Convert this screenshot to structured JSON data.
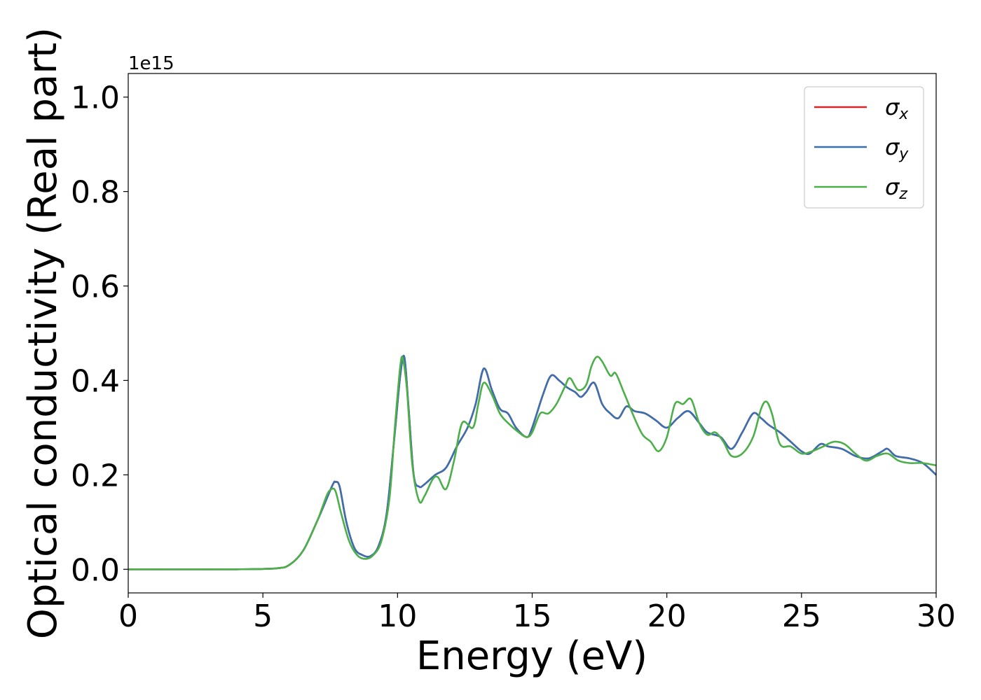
{
  "chart_data": {
    "type": "line",
    "title": "",
    "xlabel": "Energy (eV)",
    "ylabel": "Optical conductivity (Real part)",
    "y_offset_text": "1e15",
    "xlim": [
      0,
      30
    ],
    "ylim": [
      -0.05,
      1.05
    ],
    "xticks": [
      0,
      5,
      10,
      15,
      20,
      25,
      30
    ],
    "xtick_labels": [
      "0",
      "5",
      "10",
      "15",
      "20",
      "25",
      "30"
    ],
    "yticks": [
      0.0,
      0.2,
      0.4,
      0.6,
      0.8,
      1.0
    ],
    "ytick_labels": [
      "0.0",
      "0.2",
      "0.4",
      "0.6",
      "0.8",
      "1.0"
    ],
    "grid": false,
    "legend_position": "top-right",
    "series": [
      {
        "name": "σx",
        "name_symbol": "σ",
        "name_sub": "x",
        "color": "#d62728",
        "x": [
          0,
          4,
          5.5,
          6,
          6.5,
          7,
          7.3,
          7.6,
          7.7,
          7.85,
          8.1,
          8.4,
          8.7,
          9.0,
          9.3,
          9.6,
          9.9,
          10.1,
          10.25,
          10.4,
          10.6,
          10.8,
          11.0,
          11.4,
          11.8,
          12.2,
          12.6,
          12.9,
          13.2,
          13.5,
          13.8,
          14.1,
          14.4,
          14.8,
          15.0,
          15.4,
          15.7,
          16.0,
          16.3,
          16.6,
          16.8,
          17.0,
          17.3,
          17.6,
          17.9,
          18.2,
          18.5,
          18.8,
          19.2,
          19.6,
          20.0,
          20.4,
          20.8,
          21.2,
          21.5,
          22.0,
          22.4,
          22.8,
          23.2,
          23.5,
          23.8,
          24.2,
          24.6,
          25.0,
          25.3,
          25.7,
          26.0,
          26.5,
          27.0,
          27.5,
          28.0,
          28.2,
          28.5,
          29.0,
          29.5,
          30.0
        ],
        "values": [
          0.0,
          0.0,
          0.002,
          0.01,
          0.04,
          0.1,
          0.14,
          0.18,
          0.185,
          0.175,
          0.1,
          0.045,
          0.03,
          0.028,
          0.05,
          0.12,
          0.29,
          0.41,
          0.45,
          0.35,
          0.2,
          0.175,
          0.18,
          0.2,
          0.215,
          0.26,
          0.3,
          0.35,
          0.425,
          0.38,
          0.34,
          0.33,
          0.3,
          0.28,
          0.3,
          0.37,
          0.41,
          0.4,
          0.385,
          0.375,
          0.365,
          0.375,
          0.395,
          0.35,
          0.33,
          0.32,
          0.345,
          0.335,
          0.33,
          0.315,
          0.3,
          0.32,
          0.335,
          0.31,
          0.29,
          0.28,
          0.255,
          0.29,
          0.33,
          0.32,
          0.305,
          0.29,
          0.27,
          0.25,
          0.245,
          0.265,
          0.26,
          0.255,
          0.24,
          0.235,
          0.25,
          0.255,
          0.24,
          0.235,
          0.225,
          0.2
        ]
      },
      {
        "name": "σy",
        "name_symbol": "σ",
        "name_sub": "y",
        "color": "#3a6fb0",
        "x": [
          0,
          4,
          5.5,
          6,
          6.5,
          7,
          7.3,
          7.6,
          7.7,
          7.85,
          8.1,
          8.4,
          8.7,
          9.0,
          9.3,
          9.6,
          9.9,
          10.1,
          10.25,
          10.4,
          10.6,
          10.8,
          11.0,
          11.4,
          11.8,
          12.2,
          12.6,
          12.9,
          13.2,
          13.5,
          13.8,
          14.1,
          14.4,
          14.8,
          15.0,
          15.4,
          15.7,
          16.0,
          16.3,
          16.6,
          16.8,
          17.0,
          17.3,
          17.6,
          17.9,
          18.2,
          18.5,
          18.8,
          19.2,
          19.6,
          20.0,
          20.4,
          20.8,
          21.2,
          21.5,
          22.0,
          22.4,
          22.8,
          23.2,
          23.5,
          23.8,
          24.2,
          24.6,
          25.0,
          25.3,
          25.7,
          26.0,
          26.5,
          27.0,
          27.5,
          28.0,
          28.2,
          28.5,
          29.0,
          29.5,
          30.0
        ],
        "values": [
          0.0,
          0.0,
          0.002,
          0.01,
          0.04,
          0.1,
          0.14,
          0.18,
          0.185,
          0.175,
          0.1,
          0.045,
          0.03,
          0.028,
          0.05,
          0.12,
          0.29,
          0.41,
          0.45,
          0.35,
          0.2,
          0.175,
          0.18,
          0.2,
          0.215,
          0.26,
          0.3,
          0.35,
          0.425,
          0.38,
          0.34,
          0.33,
          0.3,
          0.28,
          0.3,
          0.37,
          0.41,
          0.4,
          0.385,
          0.375,
          0.365,
          0.375,
          0.395,
          0.35,
          0.33,
          0.32,
          0.345,
          0.335,
          0.33,
          0.315,
          0.3,
          0.32,
          0.335,
          0.31,
          0.29,
          0.28,
          0.255,
          0.29,
          0.33,
          0.32,
          0.305,
          0.29,
          0.27,
          0.25,
          0.245,
          0.265,
          0.26,
          0.255,
          0.24,
          0.235,
          0.25,
          0.255,
          0.24,
          0.235,
          0.225,
          0.2
        ]
      },
      {
        "name": "σz",
        "name_symbol": "σ",
        "name_sub": "z",
        "color": "#4daf4a",
        "x": [
          0,
          4,
          5.5,
          6,
          6.5,
          7,
          7.2,
          7.4,
          7.55,
          7.7,
          7.9,
          8.2,
          8.5,
          8.8,
          9.1,
          9.4,
          9.7,
          9.9,
          10.1,
          10.2,
          10.35,
          10.55,
          10.8,
          11.0,
          11.3,
          11.5,
          11.8,
          12.1,
          12.4,
          12.8,
          13.0,
          13.2,
          13.5,
          13.8,
          14.1,
          14.5,
          14.8,
          15.0,
          15.3,
          15.6,
          15.9,
          16.2,
          16.4,
          16.7,
          17.0,
          17.2,
          17.4,
          17.6,
          17.9,
          18.1,
          18.4,
          18.8,
          19.1,
          19.4,
          19.7,
          20.0,
          20.3,
          20.6,
          20.9,
          21.2,
          21.5,
          21.8,
          22.1,
          22.4,
          22.8,
          23.2,
          23.5,
          23.7,
          23.9,
          24.2,
          24.6,
          25.0,
          25.4,
          25.8,
          26.2,
          26.6,
          27.0,
          27.4,
          27.8,
          28.2,
          28.6,
          29.0,
          29.5,
          30.0
        ],
        "values": [
          0.0,
          0.0,
          0.002,
          0.01,
          0.04,
          0.1,
          0.13,
          0.16,
          0.17,
          0.165,
          0.12,
          0.06,
          0.03,
          0.022,
          0.03,
          0.06,
          0.15,
          0.3,
          0.43,
          0.445,
          0.38,
          0.22,
          0.145,
          0.155,
          0.19,
          0.195,
          0.17,
          0.23,
          0.31,
          0.3,
          0.35,
          0.395,
          0.37,
          0.33,
          0.31,
          0.29,
          0.28,
          0.29,
          0.33,
          0.33,
          0.35,
          0.385,
          0.405,
          0.38,
          0.39,
          0.43,
          0.45,
          0.44,
          0.41,
          0.415,
          0.375,
          0.32,
          0.285,
          0.27,
          0.25,
          0.28,
          0.35,
          0.35,
          0.36,
          0.31,
          0.285,
          0.29,
          0.27,
          0.24,
          0.245,
          0.28,
          0.34,
          0.355,
          0.33,
          0.265,
          0.26,
          0.245,
          0.25,
          0.26,
          0.27,
          0.265,
          0.245,
          0.23,
          0.24,
          0.245,
          0.23,
          0.225,
          0.225,
          0.22
        ]
      }
    ]
  }
}
